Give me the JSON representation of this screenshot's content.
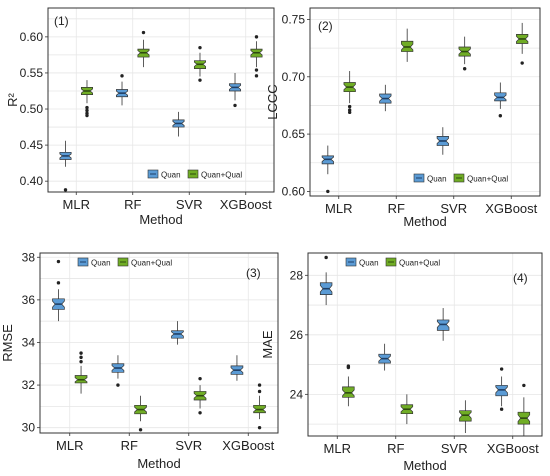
{
  "colors": {
    "quan": "#5b9bd5",
    "quan_qual": "#70ad25",
    "median_quan": "#1f3f66",
    "median_quan_qual": "#2e4a10",
    "panel_bg": "#ffffff",
    "grid": "#e6e6e6",
    "frame": "#333333",
    "outlier": "#222222"
  },
  "chart_data": [
    {
      "type": "boxplot",
      "panel_label": "(1)",
      "xlabel": "Method",
      "ylabel": "R²",
      "ylim": [
        0.385,
        0.64
      ],
      "yticks": [
        0.4,
        0.45,
        0.5,
        0.55,
        0.6
      ],
      "ytick_labels": [
        "0.40",
        "0.45",
        "0.50",
        "0.55",
        "0.60"
      ],
      "categories": [
        "MLR",
        "RF",
        "SVR",
        "XGBoost"
      ],
      "legend": {
        "position": "bottom-right",
        "entries": [
          "Quan",
          "Quan+Qual"
        ]
      },
      "grid": true,
      "series": [
        {
          "name": "Quan",
          "color_key": "quan",
          "boxes": [
            {
              "min": 0.42,
              "q1": 0.43,
              "median": 0.435,
              "q3": 0.44,
              "max": 0.456,
              "outliers": [
                0.388
              ]
            },
            {
              "min": 0.505,
              "q1": 0.517,
              "median": 0.522,
              "q3": 0.527,
              "max": 0.538,
              "outliers": [
                0.546
              ]
            },
            {
              "min": 0.462,
              "q1": 0.475,
              "median": 0.48,
              "q3": 0.485,
              "max": 0.496,
              "outliers": []
            },
            {
              "min": 0.512,
              "q1": 0.525,
              "median": 0.53,
              "q3": 0.535,
              "max": 0.55,
              "outliers": [
                0.505
              ]
            }
          ]
        },
        {
          "name": "Quan+Qual",
          "color_key": "quan_qual",
          "boxes": [
            {
              "min": 0.508,
              "q1": 0.52,
              "median": 0.525,
              "q3": 0.53,
              "max": 0.54,
              "outliers": [
                0.502,
                0.498,
                0.494,
                0.491
              ]
            },
            {
              "min": 0.558,
              "q1": 0.572,
              "median": 0.578,
              "q3": 0.583,
              "max": 0.596,
              "outliers": [
                0.606
              ]
            },
            {
              "min": 0.545,
              "q1": 0.556,
              "median": 0.562,
              "q3": 0.567,
              "max": 0.578,
              "outliers": [
                0.585,
                0.54
              ]
            },
            {
              "min": 0.558,
              "q1": 0.572,
              "median": 0.578,
              "q3": 0.583,
              "max": 0.594,
              "outliers": [
                0.6,
                0.554,
                0.546
              ]
            }
          ]
        }
      ]
    },
    {
      "type": "boxplot",
      "panel_label": "(2)",
      "xlabel": "Method",
      "ylabel": "LCCC",
      "ylim": [
        0.596,
        0.76
      ],
      "yticks": [
        0.6,
        0.65,
        0.7,
        0.75
      ],
      "ytick_labels": [
        "0.60",
        "0.65",
        "0.70",
        "0.75"
      ],
      "categories": [
        "MLR",
        "RF",
        "SVR",
        "XGBoost"
      ],
      "legend": {
        "position": "bottom-right",
        "entries": [
          "Quan",
          "Quan+Qual"
        ]
      },
      "grid": true,
      "series": [
        {
          "name": "Quan",
          "color_key": "quan",
          "boxes": [
            {
              "min": 0.615,
              "q1": 0.624,
              "median": 0.628,
              "q3": 0.631,
              "max": 0.64,
              "outliers": [
                0.6
              ]
            },
            {
              "min": 0.67,
              "q1": 0.677,
              "median": 0.681,
              "q3": 0.685,
              "max": 0.693,
              "outliers": []
            },
            {
              "min": 0.632,
              "q1": 0.64,
              "median": 0.644,
              "q3": 0.648,
              "max": 0.656,
              "outliers": []
            },
            {
              "min": 0.672,
              "q1": 0.679,
              "median": 0.682,
              "q3": 0.686,
              "max": 0.695,
              "outliers": [
                0.666
              ]
            }
          ]
        },
        {
          "name": "Quan+Qual",
          "color_key": "quan_qual",
          "boxes": [
            {
              "min": 0.677,
              "q1": 0.687,
              "median": 0.691,
              "q3": 0.695,
              "max": 0.705,
              "outliers": [
                0.674,
                0.671,
                0.669
              ]
            },
            {
              "min": 0.713,
              "q1": 0.722,
              "median": 0.726,
              "q3": 0.731,
              "max": 0.742,
              "outliers": []
            },
            {
              "min": 0.711,
              "q1": 0.718,
              "median": 0.722,
              "q3": 0.726,
              "max": 0.735,
              "outliers": [
                0.707
              ]
            },
            {
              "min": 0.72,
              "q1": 0.729,
              "median": 0.733,
              "q3": 0.737,
              "max": 0.747,
              "outliers": [
                0.712
              ]
            }
          ]
        }
      ]
    },
    {
      "type": "boxplot",
      "panel_label": "(3)",
      "xlabel": "Method",
      "ylabel": "RMSE",
      "ylim": [
        29.75,
        38.2
      ],
      "yticks": [
        30,
        32,
        34,
        36,
        38
      ],
      "ytick_labels": [
        "30",
        "32",
        "34",
        "36",
        "38"
      ],
      "categories": [
        "MLR",
        "RF",
        "SVR",
        "XGBoost"
      ],
      "legend": {
        "position": "top-left",
        "entries": [
          "Quan",
          "Quan+Qual"
        ]
      },
      "grid": true,
      "series": [
        {
          "name": "Quan",
          "color_key": "quan",
          "boxes": [
            {
              "min": 35.0,
              "q1": 35.55,
              "median": 35.8,
              "q3": 36.05,
              "max": 36.5,
              "outliers": [
                36.8,
                37.8
              ]
            },
            {
              "min": 32.3,
              "q1": 32.6,
              "median": 32.8,
              "q3": 33.0,
              "max": 33.4,
              "outliers": [
                32.0
              ]
            },
            {
              "min": 33.9,
              "q1": 34.2,
              "median": 34.4,
              "q3": 34.55,
              "max": 35.0,
              "outliers": []
            },
            {
              "min": 32.2,
              "q1": 32.5,
              "median": 32.7,
              "q3": 32.9,
              "max": 33.4,
              "outliers": []
            }
          ]
        },
        {
          "name": "Quan+Qual",
          "color_key": "quan_qual",
          "boxes": [
            {
              "min": 31.6,
              "q1": 32.1,
              "median": 32.25,
              "q3": 32.45,
              "max": 32.9,
              "outliers": [
                33.1,
                33.3,
                33.5
              ]
            },
            {
              "min": 30.3,
              "q1": 30.65,
              "median": 30.85,
              "q3": 31.05,
              "max": 31.5,
              "outliers": [
                29.9
              ]
            },
            {
              "min": 30.9,
              "q1": 31.3,
              "median": 31.5,
              "q3": 31.7,
              "max": 32.0,
              "outliers": [
                32.3,
                30.7
              ]
            },
            {
              "min": 30.4,
              "q1": 30.7,
              "median": 30.85,
              "q3": 31.05,
              "max": 31.5,
              "outliers": [
                31.7,
                32.0,
                30.0
              ]
            }
          ]
        }
      ]
    },
    {
      "type": "boxplot",
      "panel_label": "(4)",
      "xlabel": "Method",
      "ylabel": "MAE",
      "ylim": [
        22.6,
        28.75
      ],
      "yticks": [
        24,
        26,
        28
      ],
      "ytick_labels": [
        "24",
        "26",
        "28"
      ],
      "categories": [
        "MLR",
        "RF",
        "SVR",
        "XGBoost"
      ],
      "legend": {
        "position": "top-left",
        "entries": [
          "Quan",
          "Quan+Qual"
        ]
      },
      "grid": true,
      "series": [
        {
          "name": "Quan",
          "color_key": "quan",
          "boxes": [
            {
              "min": 27.0,
              "q1": 27.35,
              "median": 27.55,
              "q3": 27.75,
              "max": 28.1,
              "outliers": [
                28.6
              ]
            },
            {
              "min": 24.8,
              "q1": 25.05,
              "median": 25.2,
              "q3": 25.35,
              "max": 25.7,
              "outliers": []
            },
            {
              "min": 25.8,
              "q1": 26.15,
              "median": 26.35,
              "q3": 26.5,
              "max": 26.9,
              "outliers": []
            },
            {
              "min": 23.6,
              "q1": 23.95,
              "median": 24.15,
              "q3": 24.3,
              "max": 24.6,
              "outliers": [
                24.85,
                23.5
              ]
            }
          ]
        },
        {
          "name": "Quan+Qual",
          "color_key": "quan_qual",
          "boxes": [
            {
              "min": 23.6,
              "q1": 23.9,
              "median": 24.05,
              "q3": 24.25,
              "max": 24.6,
              "outliers": [
                24.9,
                24.95
              ]
            },
            {
              "min": 23.0,
              "q1": 23.35,
              "median": 23.5,
              "q3": 23.65,
              "max": 24.0,
              "outliers": []
            },
            {
              "min": 22.7,
              "q1": 23.1,
              "median": 23.3,
              "q3": 23.45,
              "max": 23.8,
              "outliers": []
            },
            {
              "min": 22.6,
              "q1": 23.0,
              "median": 23.2,
              "q3": 23.4,
              "max": 23.9,
              "outliers": [
                24.3
              ]
            }
          ]
        }
      ]
    }
  ]
}
